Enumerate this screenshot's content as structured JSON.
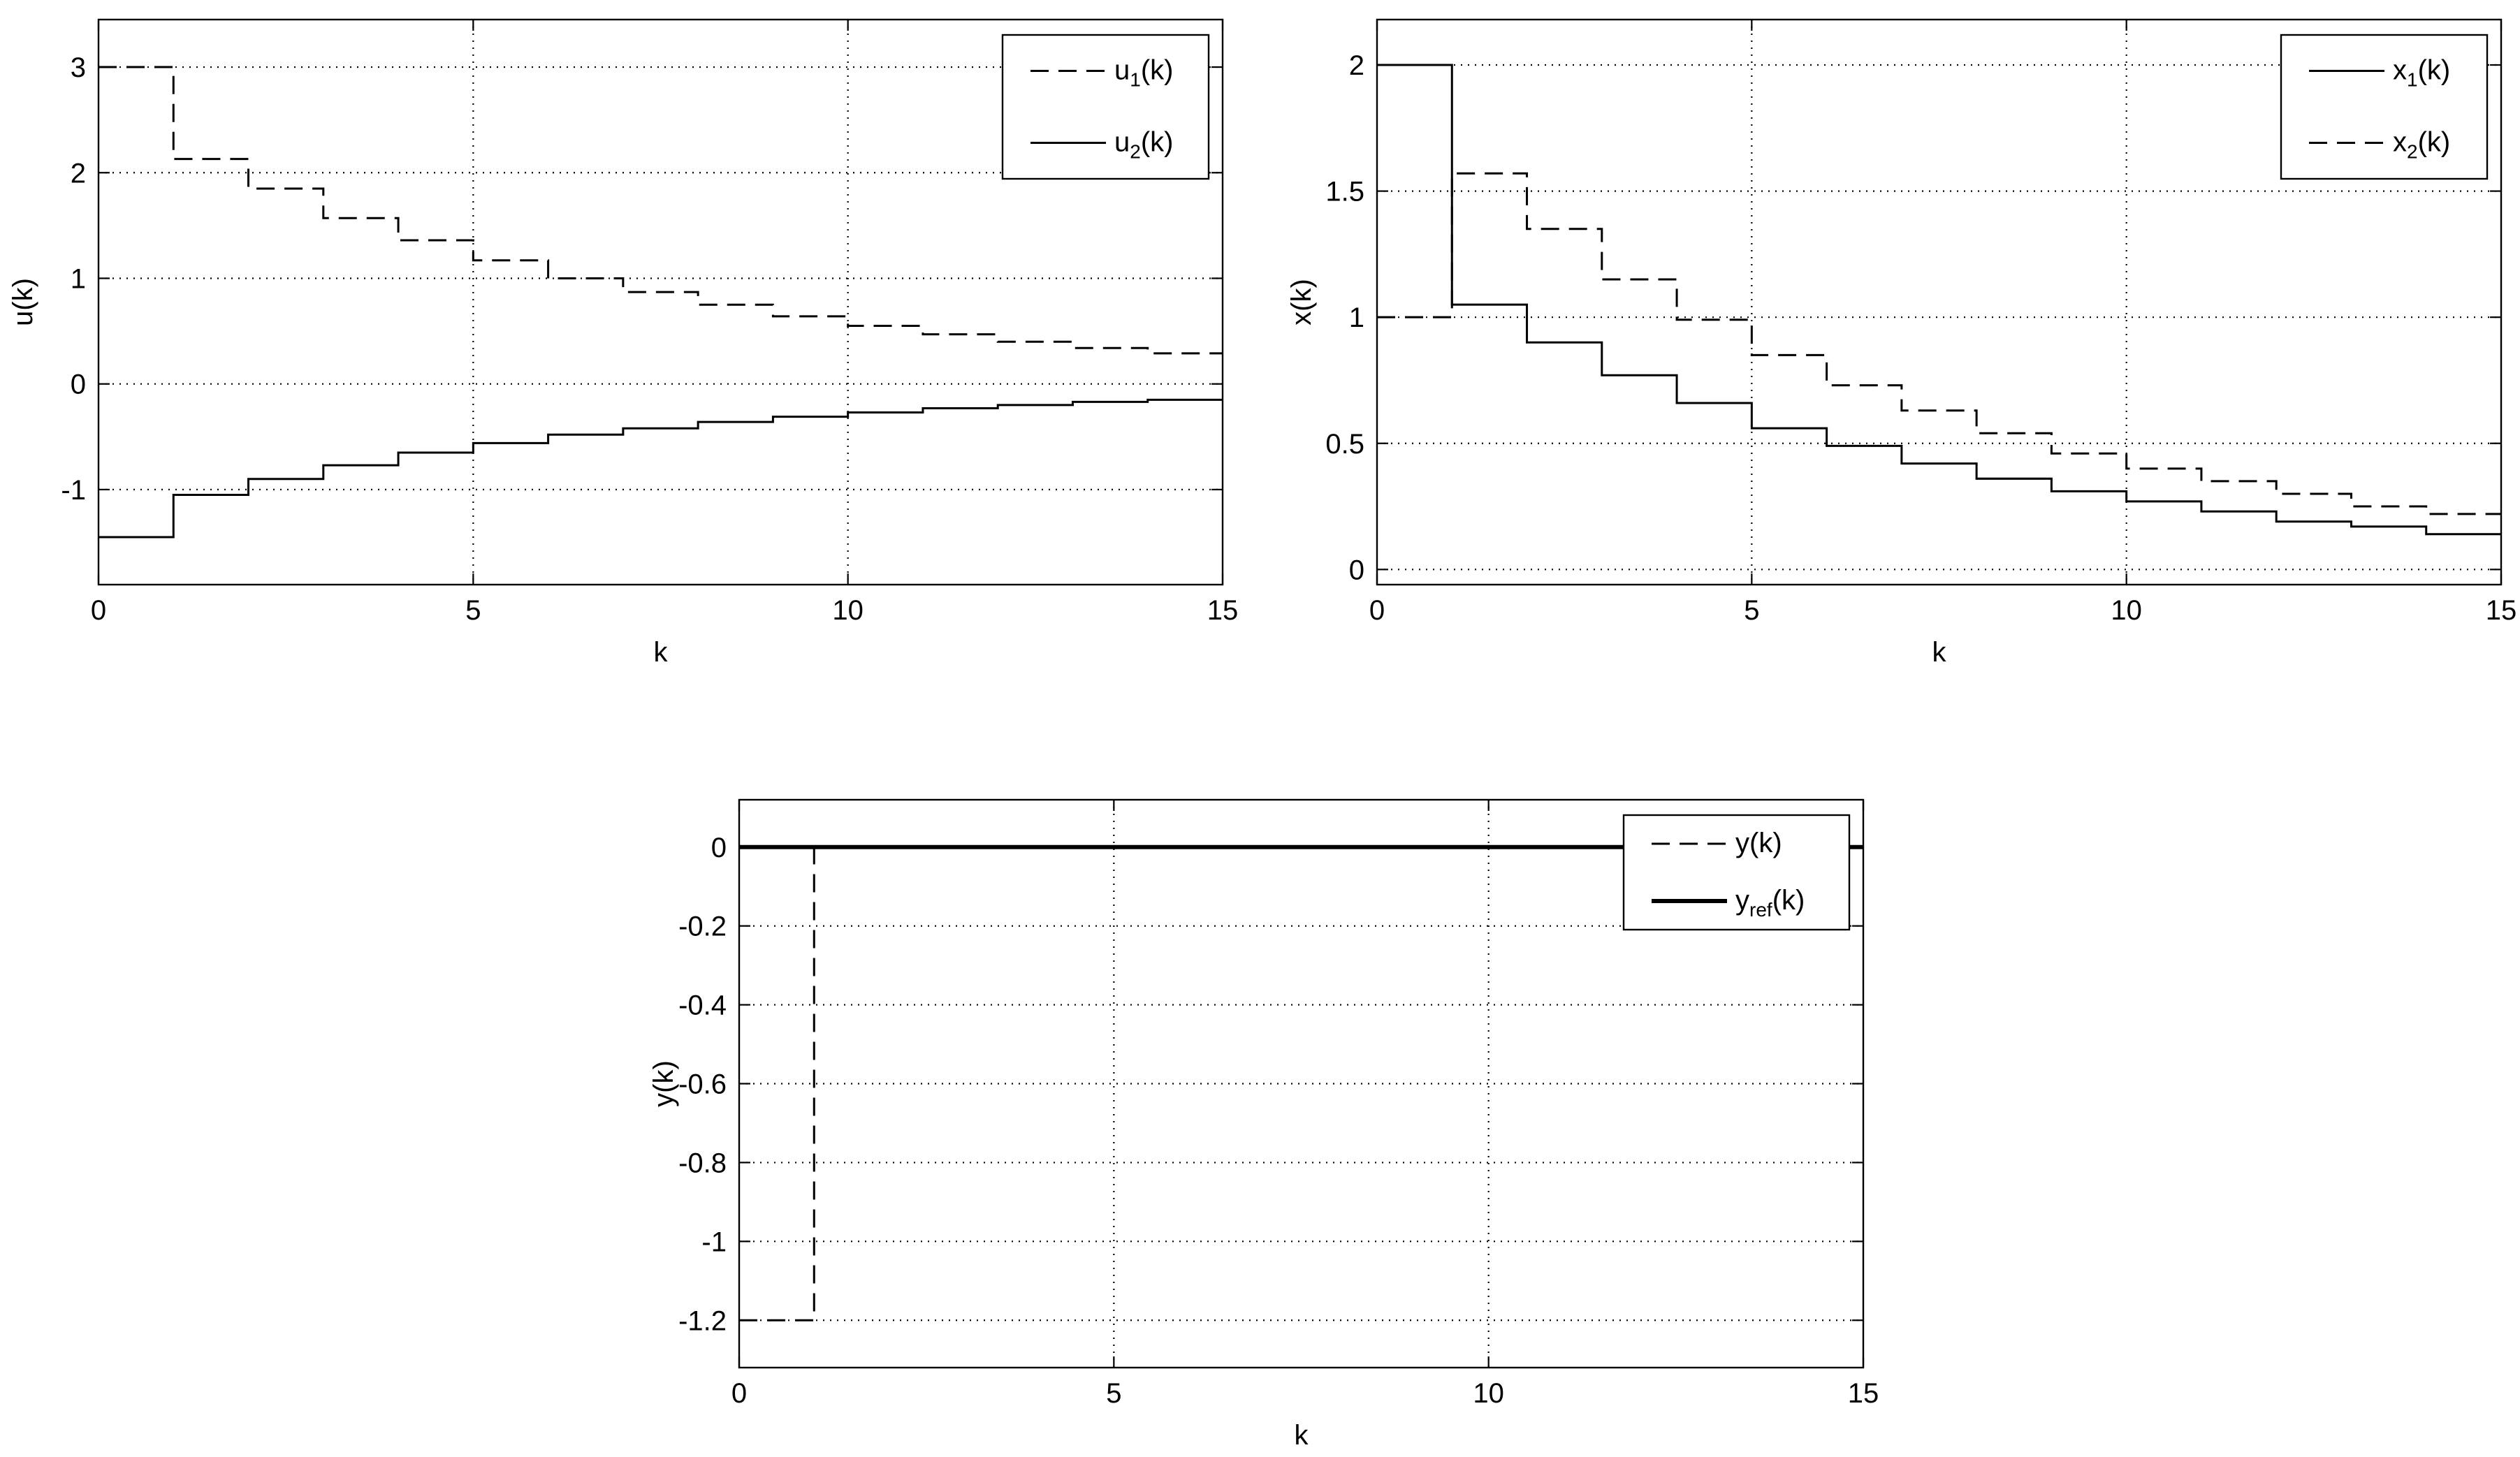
{
  "figure": {
    "background": "#ffffff",
    "line_color": "#000000",
    "grid_color": "#000000"
  },
  "chart_data": [
    {
      "id": "u",
      "type": "line",
      "step": true,
      "grid": true,
      "legend_position": "top-right",
      "xlabel": "k",
      "ylabel": "u(k)",
      "xlim": [
        0,
        15
      ],
      "ylim": [
        -1.9,
        3.45
      ],
      "xticks": [
        0,
        5,
        10,
        15
      ],
      "xtick_labels": [
        "0",
        "5",
        "10",
        "15"
      ],
      "yticks": [
        -1,
        0,
        1,
        2,
        3
      ],
      "ytick_labels": [
        "-1",
        "0",
        "1",
        "2",
        "3"
      ],
      "x": [
        0,
        1,
        2,
        3,
        4,
        5,
        6,
        7,
        8,
        9,
        10,
        11,
        12,
        13,
        14,
        15
      ],
      "series": [
        {
          "name": "u1(k)",
          "legend_main": "u",
          "legend_sub": "1",
          "legend_tail": "(k)",
          "style": "dashed",
          "width": 1.3,
          "values": [
            3.0,
            2.13,
            1.85,
            1.57,
            1.36,
            1.17,
            1.0,
            0.87,
            0.75,
            0.64,
            0.55,
            0.47,
            0.4,
            0.34,
            0.29,
            0.29
          ]
        },
        {
          "name": "u2(k)",
          "legend_main": "u",
          "legend_sub": "2",
          "legend_tail": "(k)",
          "style": "solid",
          "width": 1.3,
          "values": [
            -1.45,
            -1.05,
            -0.9,
            -0.77,
            -0.65,
            -0.56,
            -0.48,
            -0.42,
            -0.36,
            -0.31,
            -0.27,
            -0.23,
            -0.2,
            -0.17,
            -0.15,
            -0.15
          ]
        }
      ]
    },
    {
      "id": "x",
      "type": "line",
      "step": true,
      "grid": true,
      "legend_position": "top-right",
      "xlabel": "k",
      "ylabel": "x(k)",
      "xlim": [
        0,
        15
      ],
      "ylim": [
        -0.06,
        2.18
      ],
      "xticks": [
        0,
        5,
        10,
        15
      ],
      "xtick_labels": [
        "0",
        "5",
        "10",
        "15"
      ],
      "yticks": [
        0,
        0.5,
        1,
        1.5,
        2
      ],
      "ytick_labels": [
        "0",
        "0.5",
        "1",
        "1.5",
        "2"
      ],
      "x": [
        0,
        1,
        2,
        3,
        4,
        5,
        6,
        7,
        8,
        9,
        10,
        11,
        12,
        13,
        14,
        15
      ],
      "series": [
        {
          "name": "x1(k)",
          "legend_main": "x",
          "legend_sub": "1",
          "legend_tail": "(k)",
          "style": "solid",
          "width": 1.3,
          "values": [
            2.0,
            1.05,
            0.9,
            0.77,
            0.66,
            0.56,
            0.49,
            0.42,
            0.36,
            0.31,
            0.27,
            0.23,
            0.19,
            0.17,
            0.14,
            0.14
          ]
        },
        {
          "name": "x2(k)",
          "legend_main": "x",
          "legend_sub": "2",
          "legend_tail": "(k)",
          "style": "dashed",
          "width": 1.3,
          "values": [
            1.0,
            1.57,
            1.35,
            1.15,
            0.99,
            0.85,
            0.73,
            0.63,
            0.54,
            0.46,
            0.4,
            0.35,
            0.3,
            0.25,
            0.22,
            0.22
          ]
        }
      ]
    },
    {
      "id": "y",
      "type": "line",
      "step": true,
      "grid": true,
      "legend_position": "top-right",
      "xlabel": "k",
      "ylabel": "y(k)",
      "xlim": [
        0,
        15
      ],
      "ylim": [
        -1.32,
        0.12
      ],
      "xticks": [
        0,
        5,
        10,
        15
      ],
      "xtick_labels": [
        "0",
        "5",
        "10",
        "15"
      ],
      "yticks": [
        -1.2,
        -1,
        -0.8,
        -0.6,
        -0.4,
        -0.2,
        0
      ],
      "ytick_labels": [
        "-1.2",
        "-1",
        "-0.8",
        "-0.6",
        "-0.4",
        "-0.2",
        "0"
      ],
      "x": [
        0,
        1,
        2,
        3,
        4,
        5,
        6,
        7,
        8,
        9,
        10,
        11,
        12,
        13,
        14,
        15
      ],
      "series": [
        {
          "name": "y(k)",
          "legend_main": "y",
          "legend_sub": "",
          "legend_tail": "(k)",
          "style": "dashed",
          "width": 1.3,
          "values": [
            -1.2,
            0,
            0,
            0,
            0,
            0,
            0,
            0,
            0,
            0,
            0,
            0,
            0,
            0,
            0,
            0
          ]
        },
        {
          "name": "yref(k)",
          "legend_main": "y",
          "legend_sub": "ref",
          "legend_tail": "(k)",
          "style": "solid",
          "width": 2.6,
          "values": [
            0,
            0,
            0,
            0,
            0,
            0,
            0,
            0,
            0,
            0,
            0,
            0,
            0,
            0,
            0,
            0
          ]
        }
      ]
    }
  ]
}
